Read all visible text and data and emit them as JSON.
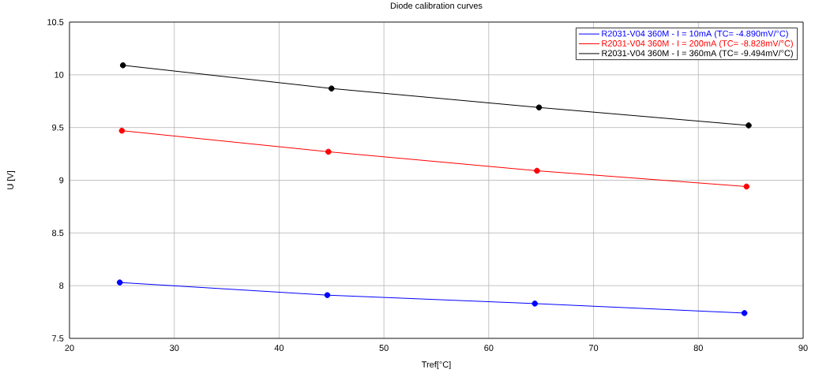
{
  "chart_data": {
    "type": "line",
    "title": "Diode calibration curves",
    "xlabel": "Tref[°C]",
    "ylabel": "U [V]",
    "series": [
      {
        "name": "R2031-V04 360M - I = 10mA (TC= -4.890mV/°C)",
        "color": "#0000ff",
        "x": [
          24.8,
          44.6,
          64.4,
          84.4
        ],
        "values": [
          8.03,
          7.91,
          7.83,
          7.74
        ]
      },
      {
        "name": "R2031-V04 360M - I = 200mA (TC= -8.828mV/°C)",
        "color": "#ff0000",
        "x": [
          25.0,
          44.7,
          64.6,
          84.6
        ],
        "values": [
          9.47,
          9.27,
          9.09,
          8.94
        ]
      },
      {
        "name": "R2031-V04 360M - I = 360mA (TC= -9.494mV/°C)",
        "color": "#000000",
        "x": [
          25.1,
          45.0,
          64.8,
          84.8
        ],
        "values": [
          10.09,
          9.87,
          9.69,
          9.52
        ]
      }
    ],
    "xlim": [
      20,
      90
    ],
    "ylim": [
      7.5,
      10.5
    ],
    "xticks": [
      20,
      30,
      40,
      50,
      60,
      70,
      80,
      90
    ],
    "yticks": [
      7.5,
      8,
      8.5,
      9,
      9.5,
      10,
      10.5
    ],
    "grid": true,
    "legend": "top right",
    "marker": "circle",
    "line_style": "solid"
  }
}
